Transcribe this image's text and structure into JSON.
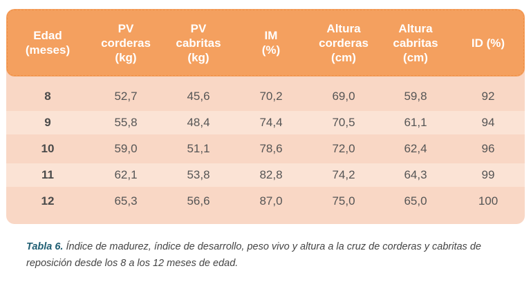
{
  "table": {
    "headers": [
      "Edad\n(meses)",
      "PV\ncorderas\n(kg)",
      "PV\ncabritas\n(kg)",
      "IM\n(%)",
      "Altura\ncorderas\n(cm)",
      "Altura\ncabritas\n(cm)",
      "ID (%)"
    ],
    "rows": [
      [
        "8",
        "52,7",
        "45,6",
        "70,2",
        "69,0",
        "59,8",
        "92"
      ],
      [
        "9",
        "55,8",
        "48,4",
        "74,4",
        "70,5",
        "61,1",
        "94"
      ],
      [
        "10",
        "59,0",
        "51,1",
        "78,6",
        "72,0",
        "62,4",
        "96"
      ],
      [
        "11",
        "62,1",
        "53,8",
        "82,8",
        "74,2",
        "64,3",
        "99"
      ],
      [
        "12",
        "65,3",
        "56,6",
        "87,0",
        "75,0",
        "65,0",
        "100"
      ]
    ]
  },
  "caption": {
    "label": "Tabla 6.",
    "text": " Índice de madurez, índice de desarrollo, peso vivo y altura a la cruz de corderas y cabritas de reposición desde los 8 a los 12 meses de edad."
  },
  "colors": {
    "header_bg": "#f4a05f",
    "body_bg": "#f9d7c5",
    "caption_label": "#1f5e73"
  }
}
